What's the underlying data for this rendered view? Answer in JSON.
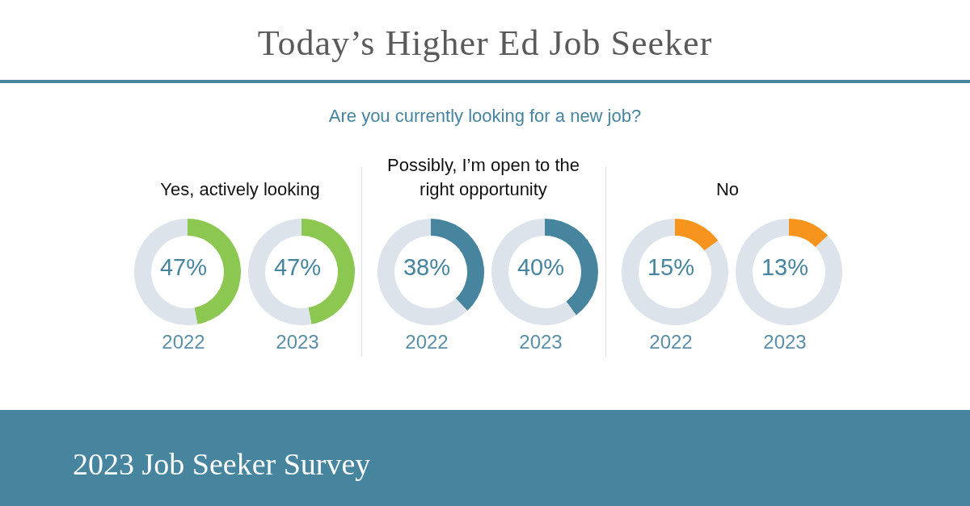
{
  "chart_data": [
    {
      "type": "other",
      "title": "Today’s Higher Ed Job Seeker",
      "subtitle": "Are you currently looking for a new job?",
      "annotations": [
        "2023 Job Seeker Survey"
      ]
    },
    {
      "type": "donut",
      "title": "Yes, actively looking",
      "xlabel": "2022",
      "categories": [
        null,
        null
      ],
      "values": [
        47,
        53
      ],
      "colors": [
        "#8cc751",
        "#dde3ea"
      ],
      "annotations": [
        "47%"
      ]
    },
    {
      "type": "donut",
      "xlabel": "2023",
      "categories": [
        null,
        null
      ],
      "values": [
        47,
        53
      ],
      "colors": [
        "#8cc751",
        "#dde3ea"
      ],
      "annotations": [
        "47%"
      ]
    },
    {
      "type": "donut",
      "title": "Possibly, I’m open to the right opportunity",
      "xlabel": "2022",
      "categories": [
        null,
        null
      ],
      "values": [
        38,
        62
      ],
      "colors": [
        "#47849e",
        "#dde3ea"
      ],
      "annotations": [
        "38%"
      ]
    },
    {
      "type": "donut",
      "xlabel": "2023",
      "categories": [
        null,
        null
      ],
      "values": [
        40,
        60
      ],
      "colors": [
        "#47849e",
        "#dde3ea"
      ],
      "annotations": [
        "40%"
      ]
    },
    {
      "type": "donut",
      "title": "No",
      "xlabel": "2022",
      "categories": [
        null,
        null
      ],
      "values": [
        15,
        85
      ],
      "colors": [
        "#f7941d",
        "#dde3ea"
      ],
      "annotations": [
        "15%"
      ]
    },
    {
      "type": "donut",
      "xlabel": "2023",
      "categories": [
        null,
        null
      ],
      "values": [
        13,
        87
      ],
      "colors": [
        "#f7941d",
        "#dde3ea"
      ],
      "annotations": [
        "13%"
      ]
    }
  ]
}
